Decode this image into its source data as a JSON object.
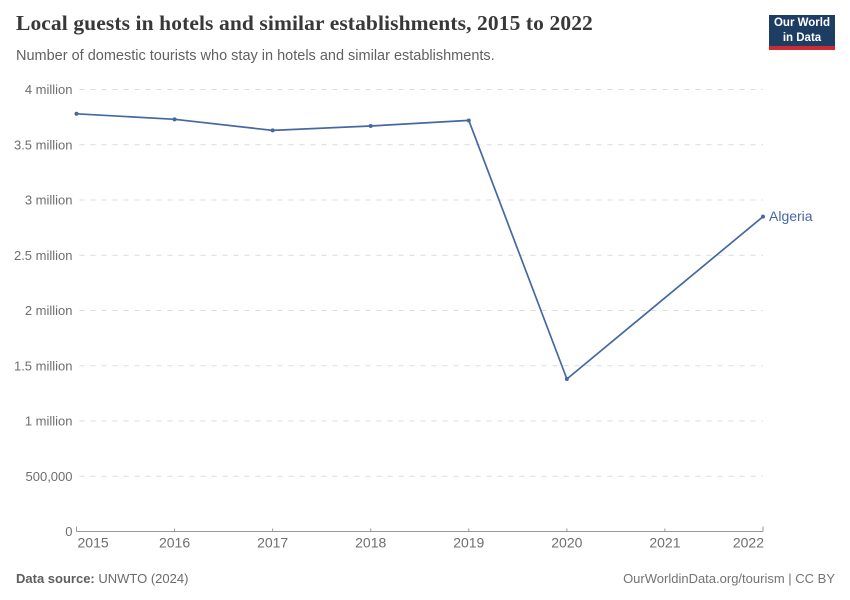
{
  "header": {
    "title": "Local guests in hotels and similar establishments, 2015 to 2022",
    "subtitle": "Number of domestic tourists who stay in hotels and similar establishments."
  },
  "logo": {
    "line1": "Our World",
    "line2": "in Data",
    "bg_color": "#1d3d63",
    "accent_color": "#cd2a33"
  },
  "chart_data": {
    "type": "line",
    "title": "Local guests in hotels and similar establishments, 2015 to 2022",
    "xlabel": "",
    "ylabel": "",
    "x": [
      2015,
      2016,
      2017,
      2018,
      2019,
      2020,
      2022
    ],
    "series": [
      {
        "name": "Algeria",
        "color": "#4468a2",
        "values": [
          3780000,
          3730000,
          3630000,
          3670000,
          3720000,
          1380000,
          2850000
        ]
      }
    ],
    "x_ticks": [
      2015,
      2016,
      2017,
      2018,
      2019,
      2020,
      2021,
      2022
    ],
    "y_ticks": [
      {
        "value": 0,
        "label": "0"
      },
      {
        "value": 500000,
        "label": "500,000"
      },
      {
        "value": 1000000,
        "label": "1 million"
      },
      {
        "value": 1500000,
        "label": "1.5 million"
      },
      {
        "value": 2000000,
        "label": "2 million"
      },
      {
        "value": 2500000,
        "label": "2.5 million"
      },
      {
        "value": 3000000,
        "label": "3 million"
      },
      {
        "value": 3500000,
        "label": "3.5 million"
      },
      {
        "value": 4000000,
        "label": "4 million"
      }
    ],
    "xlim": [
      2015,
      2022
    ],
    "ylim": [
      0,
      4000000
    ],
    "grid": "horizontal-dashed",
    "grid_color": "#dcdcdc",
    "axis_color": "#999999",
    "tick_label_color": "#6e6e6e",
    "legend_position": "end-of-line-label"
  },
  "footer": {
    "source_label": "Data source:",
    "source_value": " UNWTO (2024)",
    "right_text": "OurWorldinData.org/tourism | CC BY"
  }
}
